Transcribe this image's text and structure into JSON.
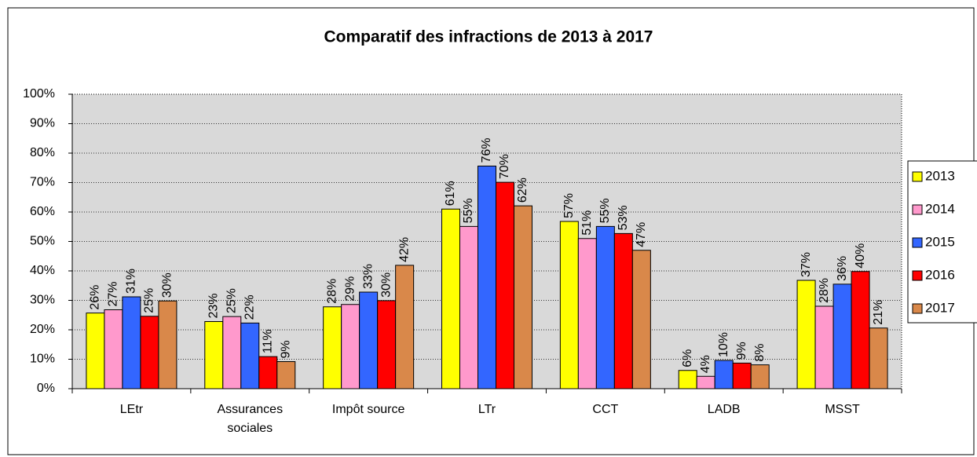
{
  "chart_data": {
    "type": "bar",
    "title": "Comparatif des infractions de 2013 à 2017",
    "categories": [
      "LEtr",
      "Assurances sociales",
      "Impôt source",
      "LTr",
      "CCT",
      "LADB",
      "MSST"
    ],
    "series": [
      {
        "name": "2013",
        "color": "#ffff00",
        "values": [
          25.7,
          22.8,
          27.8,
          61,
          56.8,
          6.2,
          36.8
        ],
        "value_labels": [
          "26%",
          "23%",
          "28%",
          "61%",
          "57%",
          "6%",
          "37%"
        ]
      },
      {
        "name": "2014",
        "color": "#ff99cc",
        "values": [
          26.8,
          24.5,
          28.6,
          55.1,
          51,
          4.2,
          28
        ],
        "value_labels": [
          "27%",
          "25%",
          "29%",
          "55%",
          "51%",
          "4%",
          "28%"
        ]
      },
      {
        "name": "2015",
        "color": "#3366ff",
        "values": [
          31.2,
          22.3,
          32.8,
          75.6,
          55.1,
          9.6,
          35.5
        ],
        "value_labels": [
          "31%",
          "22%",
          "33%",
          "76%",
          "55%",
          "10%",
          "36%"
        ]
      },
      {
        "name": "2016",
        "color": "#ff0000",
        "values": [
          24.6,
          10.9,
          29.9,
          70.1,
          52.7,
          8.7,
          39.8
        ],
        "value_labels": [
          "25%",
          "11%",
          "30%",
          "70%",
          "53%",
          "9%",
          "40%"
        ]
      },
      {
        "name": "2017",
        "color": "#d9884a",
        "values": [
          29.8,
          9.2,
          41.9,
          62.1,
          47,
          8.1,
          20.6
        ],
        "value_labels": [
          "30%",
          "9%",
          "42%",
          "62%",
          "47%",
          "8%",
          "21%"
        ]
      }
    ],
    "ylim": [
      0,
      100
    ],
    "yticks": [
      {
        "value": 0,
        "label": "0%"
      },
      {
        "value": 10,
        "label": "10%"
      },
      {
        "value": 20,
        "label": "20%"
      },
      {
        "value": 30,
        "label": "30%"
      },
      {
        "value": 40,
        "label": "40%"
      },
      {
        "value": 50,
        "label": "50%"
      },
      {
        "value": 60,
        "label": "60%"
      },
      {
        "value": 70,
        "label": "70%"
      },
      {
        "value": 80,
        "label": "80%"
      },
      {
        "value": 90,
        "label": "90%"
      },
      {
        "value": 100,
        "label": "100%"
      }
    ],
    "grid": true,
    "legend": "right"
  }
}
